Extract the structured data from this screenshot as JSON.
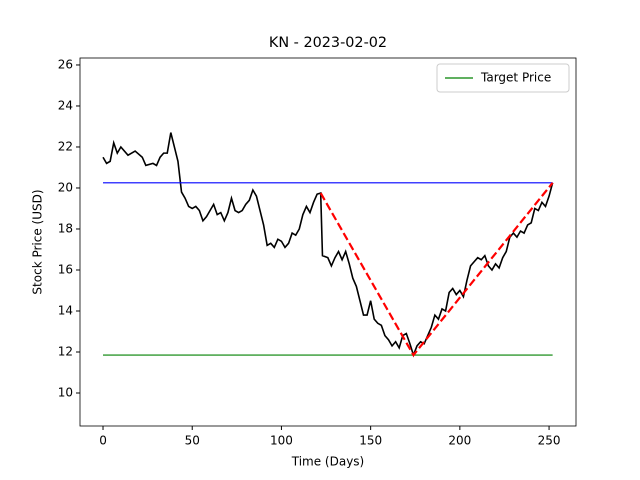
{
  "chart_data": {
    "type": "line",
    "title": "KN - 2023-02-02",
    "xlabel": "Time (Days)",
    "ylabel": "Stock Price (USD)",
    "xlim": [
      -12.9,
      265.1
    ],
    "ylim": [
      8.39,
      26.34
    ],
    "xticks": [
      0,
      50,
      100,
      150,
      200,
      250
    ],
    "yticks": [
      10,
      12,
      14,
      16,
      18,
      20,
      22,
      24,
      26
    ],
    "grid": false,
    "legend": "upper right",
    "series": [
      {
        "color": "#000000",
        "style": "solid",
        "x": [
          0,
          2,
          4,
          6,
          8,
          10,
          14,
          18,
          22,
          24,
          28,
          30,
          32,
          34,
          36,
          38,
          40,
          42,
          44,
          46,
          48,
          50,
          52,
          54,
          56,
          58,
          60,
          62,
          64,
          66,
          68,
          70,
          72,
          74,
          76,
          78,
          80,
          82,
          84,
          86,
          88,
          90,
          92,
          94,
          96,
          98,
          100,
          102,
          104,
          106,
          108,
          110,
          112,
          114,
          116,
          118,
          120,
          122,
          123,
          126,
          128,
          130,
          132,
          134,
          136,
          138,
          140,
          142,
          144,
          146,
          148,
          150,
          152,
          154,
          156,
          158,
          160,
          162,
          164,
          166,
          168,
          170,
          172,
          174,
          176,
          178,
          180,
          182,
          184,
          186,
          188,
          190,
          192,
          194,
          196,
          198,
          200,
          202,
          204,
          206,
          208,
          210,
          212,
          214,
          216,
          218,
          220,
          222,
          224,
          226,
          228,
          230,
          232,
          234,
          236,
          238,
          240,
          242,
          244,
          246,
          248,
          250,
          252
        ],
        "values": [
          21.5,
          21.2,
          21.3,
          22.2,
          21.7,
          22.0,
          21.6,
          21.8,
          21.5,
          21.1,
          21.2,
          21.1,
          21.5,
          21.7,
          21.7,
          22.7,
          22.0,
          21.3,
          19.8,
          19.5,
          19.1,
          19.0,
          19.1,
          18.9,
          18.4,
          18.6,
          18.9,
          19.2,
          18.7,
          18.8,
          18.4,
          18.8,
          19.5,
          18.9,
          18.8,
          18.9,
          19.2,
          19.4,
          19.9,
          19.6,
          18.9,
          18.2,
          17.2,
          17.3,
          17.1,
          17.5,
          17.4,
          17.1,
          17.3,
          17.8,
          17.7,
          18.0,
          18.7,
          19.1,
          18.8,
          19.3,
          19.7,
          19.75,
          16.7,
          16.6,
          16.2,
          16.6,
          16.9,
          16.5,
          16.9,
          16.3,
          15.6,
          15.2,
          14.5,
          13.8,
          13.8,
          14.5,
          13.6,
          13.4,
          13.3,
          12.8,
          12.6,
          12.3,
          12.5,
          12.2,
          12.8,
          12.9,
          12.4,
          11.85,
          12.3,
          12.5,
          12.4,
          12.8,
          13.2,
          13.8,
          13.6,
          14.1,
          14.0,
          14.9,
          15.1,
          14.8,
          15.0,
          14.7,
          15.5,
          16.2,
          16.4,
          16.6,
          16.5,
          16.7,
          16.2,
          16.0,
          16.3,
          16.1,
          16.6,
          16.9,
          17.6,
          17.8,
          17.6,
          17.9,
          17.8,
          18.2,
          18.3,
          19.0,
          18.9,
          19.3,
          19.1,
          19.6,
          20.25
        ]
      },
      {
        "color": "#0000ff",
        "style": "solid",
        "x": [
          0,
          252
        ],
        "values": [
          20.25,
          20.25
        ]
      },
      {
        "name": "Target Price",
        "color": "#008000",
        "style": "solid",
        "x": [
          0,
          252
        ],
        "values": [
          11.85,
          11.85
        ]
      },
      {
        "color": "#ff0000",
        "style": "dashed",
        "x": [
          122,
          174,
          252
        ],
        "values": [
          19.75,
          11.85,
          20.25
        ]
      }
    ]
  }
}
